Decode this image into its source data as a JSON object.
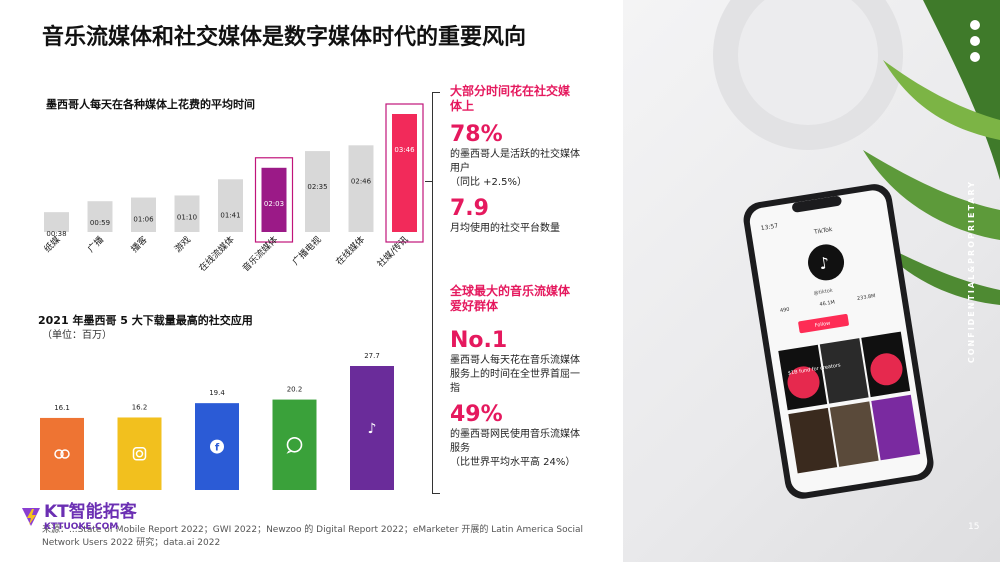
{
  "title": "音乐流媒体和社交媒体是数字媒体时代的重要风向",
  "chart1": {
    "subtitle": "墨西哥人每天在各种媒体上花费的平均时间"
  },
  "chart2": {
    "subtitle": "2021 年墨西哥 5 大下载量最高的社交应用",
    "unit": "（单位：百万）"
  },
  "chart_data": [
    {
      "type": "bar",
      "title": "墨西哥人每天在各种媒体上花费的平均时间",
      "categories": [
        "纸媒",
        "广播",
        "播客",
        "游戏",
        "在线流媒体",
        "音乐流媒体",
        "广播电视",
        "在线媒体",
        "社媒/传讯"
      ],
      "values": [
        0.633,
        0.983,
        1.1,
        1.167,
        1.683,
        2.05,
        2.583,
        2.767,
        3.767
      ],
      "value_labels": [
        "00:38",
        "00:59",
        "01:06",
        "01:10",
        "01:41",
        "02:03",
        "02:35",
        "02:46",
        "03:46"
      ],
      "highlighted": [
        "音乐流媒体",
        "社媒/传讯"
      ],
      "colors": {
        "default": "#d8d8d8",
        "music": "#9b1a87",
        "social": "#f22a5a",
        "outline": "#c0147a"
      }
    },
    {
      "type": "bar",
      "title": "2021 年墨西哥 5 大下载量最高的社交应用",
      "categories": [
        "app-1",
        "instagram",
        "facebook",
        "whatsapp",
        "tiktok"
      ],
      "values": [
        16.1,
        16.2,
        19.4,
        20.2,
        27.7
      ],
      "value_labels": [
        "16.1",
        "16.2",
        "19.4",
        "20.2",
        "27.7"
      ],
      "icons": [
        "chat-bubbles-icon",
        "instagram-icon",
        "facebook-icon",
        "whatsapp-icon",
        "tiktok-icon"
      ],
      "colors": [
        "#ee7433",
        "#f2c01e",
        "#2b5bd6",
        "#3aa13a",
        "#6a2c9a"
      ]
    }
  ],
  "right": {
    "section1_head": "大部分时间花在社交媒体上",
    "stat1": "78%",
    "stat1_text": "的墨西哥人是活跃的社交媒体用户",
    "stat1_note": "（同比 +2.5%）",
    "stat2": "7.9",
    "stat2_text": "月均使用的社交平台数量",
    "section2_head": "全球最大的音乐流媒体爱好群体",
    "stat3": "No.1",
    "stat3_text": "墨西哥人每天花在音乐流媒体服务上的时间在全世界首屈一指",
    "stat4": "49%",
    "stat4_text": "的墨西哥网民使用音乐流媒体服务",
    "stat4_note": "（比世界平均水平高 24%）"
  },
  "footer": "来源：...State of Mobile Report 2022；GWI 2022；Newzoo 的 Digital Report 2022；eMarketer 开展的 Latin America Social Network Users 2022 研究；data.ai 2022",
  "logo": {
    "name": "KT智能拓客",
    "url": "KTTUOKE.COM"
  },
  "side_label": "CONFIDENTIAL&PROPRIETARY",
  "page_number": "15",
  "phone": {
    "time": "13:57",
    "app": "TikTok",
    "handle": "@tiktok",
    "stats": [
      "490",
      "46.1M",
      "233.8M"
    ],
    "button": "Follow",
    "promo": "$1B fund for creators"
  }
}
